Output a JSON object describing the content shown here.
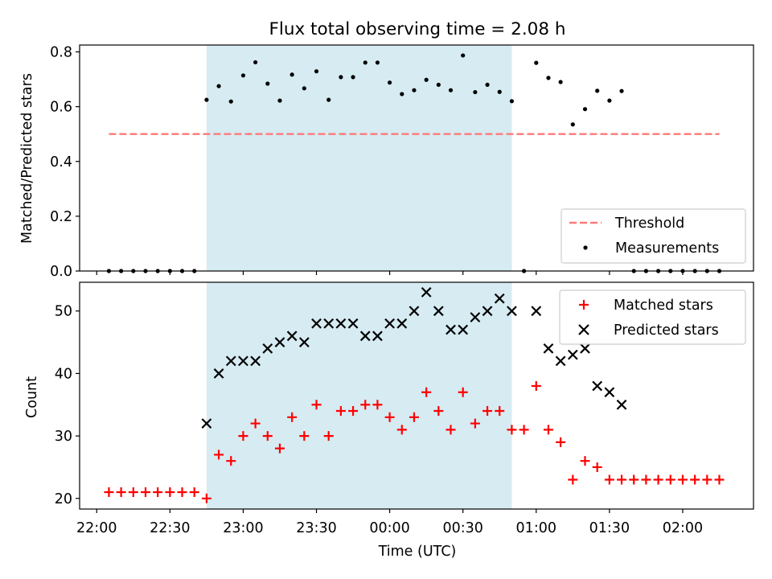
{
  "title": "Flux total observing time = 2.08 h",
  "colors": {
    "threshold": "#ff7a7a",
    "measurements": "#000000",
    "matched": "#ff0000",
    "predicted": "#000000",
    "observing_span": "#add8e6"
  },
  "chart_data": [
    {
      "type": "scatter",
      "ylabel": "Matched/Predicted stars",
      "ylim": [
        0,
        0.825
      ],
      "yticks": [
        0.0,
        0.2,
        0.4,
        0.6,
        0.8
      ],
      "ytick_labels": [
        "0.0",
        "0.2",
        "0.4",
        "0.6",
        "0.8"
      ],
      "legend_position": "lower-right",
      "observing_span": [
        "22:45",
        "00:50"
      ],
      "threshold": {
        "name": "Threshold",
        "x": [
          "22:05",
          "02:15"
        ],
        "value": 0.5,
        "style": "dashed"
      },
      "series": [
        {
          "name": "Measurements",
          "marker": "dot",
          "x": [
            "22:05",
            "22:10",
            "22:15",
            "22:20",
            "22:25",
            "22:30",
            "22:35",
            "22:40",
            "22:45",
            "22:50",
            "22:55",
            "23:00",
            "23:05",
            "23:10",
            "23:15",
            "23:20",
            "23:25",
            "23:30",
            "23:35",
            "23:40",
            "23:45",
            "23:50",
            "23:55",
            "00:00",
            "00:05",
            "00:10",
            "00:15",
            "00:20",
            "00:25",
            "00:30",
            "00:35",
            "00:40",
            "00:45",
            "00:50",
            "00:55",
            "01:00",
            "01:05",
            "01:10",
            "01:15",
            "01:20",
            "01:25",
            "01:30",
            "01:35",
            "01:40",
            "01:45",
            "01:50",
            "01:55",
            "02:00",
            "02:05",
            "02:10",
            "02:15"
          ],
          "y": [
            0,
            0,
            0,
            0,
            0,
            0,
            0,
            0,
            0.625,
            0.675,
            0.619,
            0.714,
            0.762,
            0.684,
            0.622,
            0.717,
            0.667,
            0.729,
            0.625,
            0.708,
            0.708,
            0.761,
            0.761,
            0.688,
            0.646,
            0.66,
            0.698,
            0.68,
            0.66,
            0.787,
            0.653,
            0.68,
            0.654,
            0.62,
            0,
            0.76,
            0.705,
            0.69,
            0.535,
            0.591,
            0.658,
            0.622,
            0.657,
            0,
            0,
            0,
            0,
            0,
            0,
            0,
            0
          ]
        }
      ]
    },
    {
      "type": "scatter",
      "xlabel": "Time (UTC)",
      "ylabel": "Count",
      "ylim": [
        18.3,
        54.6
      ],
      "yticks": [
        20,
        30,
        40,
        50
      ],
      "ytick_labels": [
        "20",
        "30",
        "40",
        "50"
      ],
      "x_tick_labels": [
        "22:00",
        "22:30",
        "23:00",
        "23:30",
        "00:00",
        "00:30",
        "01:00",
        "01:30",
        "02:00"
      ],
      "xlim": [
        "21:53",
        "02:29"
      ],
      "legend_position": "top-right",
      "observing_span": [
        "22:45",
        "00:50"
      ],
      "series": [
        {
          "name": "Matched stars",
          "marker": "plus",
          "x": [
            "22:05",
            "22:10",
            "22:15",
            "22:20",
            "22:25",
            "22:30",
            "22:35",
            "22:40",
            "22:45",
            "22:50",
            "22:55",
            "23:00",
            "23:05",
            "23:10",
            "23:15",
            "23:20",
            "23:25",
            "23:30",
            "23:35",
            "23:40",
            "23:45",
            "23:50",
            "23:55",
            "00:00",
            "00:05",
            "00:10",
            "00:15",
            "00:20",
            "00:25",
            "00:30",
            "00:35",
            "00:40",
            "00:45",
            "00:50",
            "00:55",
            "01:00",
            "01:05",
            "01:10",
            "01:15",
            "01:20",
            "01:25",
            "01:30",
            "01:35",
            "01:40",
            "01:45",
            "01:50",
            "01:55",
            "02:00",
            "02:05",
            "02:10",
            "02:15"
          ],
          "y": [
            21,
            21,
            21,
            21,
            21,
            21,
            21,
            21,
            20,
            27,
            26,
            30,
            32,
            30,
            28,
            33,
            30,
            35,
            30,
            34,
            34,
            35,
            35,
            33,
            31,
            33,
            37,
            34,
            31,
            37,
            32,
            34,
            34,
            31,
            31,
            38,
            31,
            29,
            23,
            26,
            25,
            23,
            23,
            23,
            23,
            23,
            23,
            23,
            23,
            23,
            23
          ]
        },
        {
          "name": "Predicted stars",
          "marker": "x",
          "x": [
            "22:45",
            "22:50",
            "22:55",
            "23:00",
            "23:05",
            "23:10",
            "23:15",
            "23:20",
            "23:25",
            "23:30",
            "23:35",
            "23:40",
            "23:45",
            "23:50",
            "23:55",
            "00:00",
            "00:05",
            "00:10",
            "00:15",
            "00:20",
            "00:25",
            "00:30",
            "00:35",
            "00:40",
            "00:45",
            "00:50",
            "01:00",
            "01:05",
            "01:10",
            "01:15",
            "01:20",
            "01:25",
            "01:30",
            "01:35"
          ],
          "y": [
            32,
            40,
            42,
            42,
            42,
            44,
            45,
            46,
            45,
            48,
            48,
            48,
            48,
            46,
            46,
            48,
            48,
            50,
            53,
            50,
            47,
            47,
            49,
            50,
            52,
            50,
            50,
            44,
            42,
            43,
            44,
            38,
            37,
            35
          ]
        }
      ]
    }
  ]
}
